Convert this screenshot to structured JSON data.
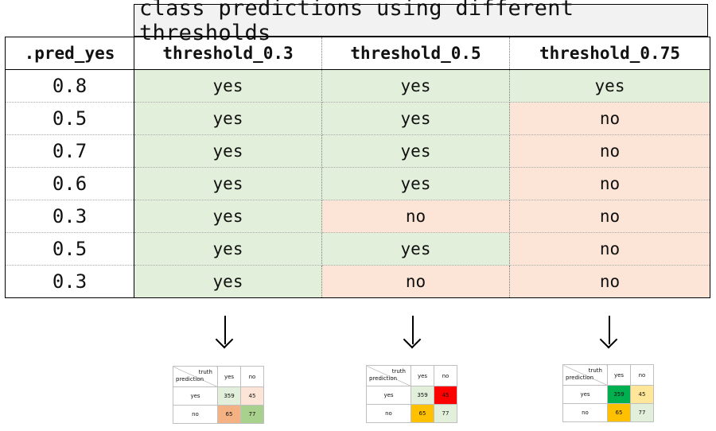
{
  "header": {
    "title": "class predictions using different thresholds"
  },
  "columns": [
    ".pred_yes",
    "threshold_0.3",
    "threshold_0.5",
    "threshold_0.75"
  ],
  "rows": [
    {
      "pred": "0.8",
      "t03": "yes",
      "t05": "yes",
      "t075": "yes"
    },
    {
      "pred": "0.5",
      "t03": "yes",
      "t05": "yes",
      "t075": "no"
    },
    {
      "pred": "0.7",
      "t03": "yes",
      "t05": "yes",
      "t075": "no"
    },
    {
      "pred": "0.6",
      "t03": "yes",
      "t05": "yes",
      "t075": "no"
    },
    {
      "pred": "0.3",
      "t03": "yes",
      "t05": "no",
      "t075": "no"
    },
    {
      "pred": "0.5",
      "t03": "yes",
      "t05": "yes",
      "t075": "no"
    },
    {
      "pred": "0.3",
      "t03": "yes",
      "t05": "no",
      "t075": "no"
    }
  ],
  "colors": {
    "yes_fill": "#e2efda",
    "no_fill": "#fce4d6",
    "header_fill": "#f2f2f2"
  },
  "arrow_icon": "down-arrow-icon",
  "confusion_matrices": [
    {
      "corner_truth": "truth",
      "corner_prediction": "prediction",
      "col_labels": [
        "yes",
        "no"
      ],
      "row_labels": [
        "yes",
        "no"
      ],
      "cells": [
        [
          "359",
          "45"
        ],
        [
          "65",
          "77"
        ]
      ],
      "cell_colors": [
        [
          "#e2efda",
          "#fce4d6"
        ],
        [
          "#f4b183",
          "#a9d18e"
        ]
      ]
    },
    {
      "corner_truth": "truth",
      "corner_prediction": "prediction",
      "col_labels": [
        "yes",
        "no"
      ],
      "row_labels": [
        "yes",
        "no"
      ],
      "cells": [
        [
          "359",
          "45"
        ],
        [
          "65",
          "77"
        ]
      ],
      "cell_colors": [
        [
          "#e2efda",
          "#ff0000"
        ],
        [
          "#ffc000",
          "#e2efda"
        ]
      ]
    },
    {
      "corner_truth": "truth",
      "corner_prediction": "prediction",
      "col_labels": [
        "yes",
        "no"
      ],
      "row_labels": [
        "yes",
        "no"
      ],
      "cells": [
        [
          "359",
          "45"
        ],
        [
          "65",
          "77"
        ]
      ],
      "cell_colors": [
        [
          "#00b050",
          "#ffe699"
        ],
        [
          "#ffc000",
          "#e2efda"
        ]
      ]
    }
  ]
}
